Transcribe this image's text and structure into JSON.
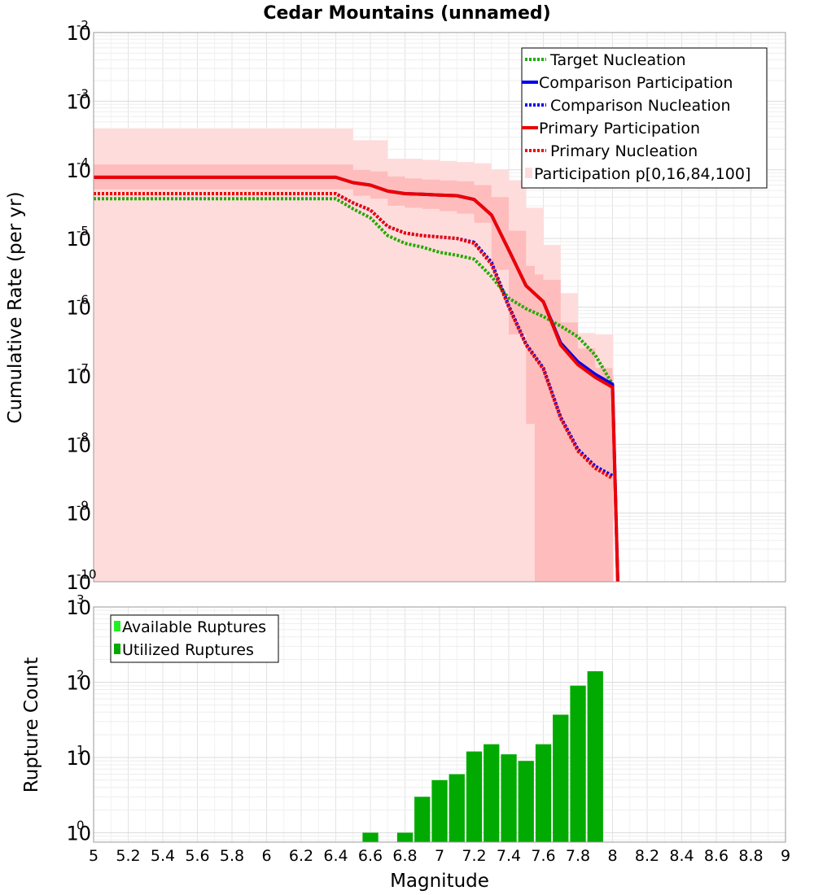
{
  "chart_data": [
    {
      "type": "line",
      "title": "Cedar Mountains (unnamed)",
      "xlabel": "",
      "ylabel": "Cumulative Rate (per yr)",
      "y_scale": "log",
      "xlim": [
        5,
        9
      ],
      "ylim": [
        1e-10,
        0.01
      ],
      "y_tick_exponents": [
        "-10",
        "-9",
        "-8",
        "-7",
        "-6",
        "-5",
        "-4",
        "-3",
        "-2"
      ],
      "grid": true,
      "legend_position": "top-right",
      "series": [
        {
          "name": "Target Nucleation",
          "style": "dotted",
          "color": "#22aa00",
          "x": [
            5.0,
            6.4,
            6.5,
            6.6,
            6.7,
            6.8,
            6.9,
            7.0,
            7.1,
            7.2,
            7.3,
            7.4,
            7.5,
            7.6,
            7.7,
            7.8,
            7.9,
            8.0
          ],
          "y": [
            3.8e-05,
            3.8e-05,
            2.7e-05,
            2e-05,
            1.1e-05,
            8.5e-06,
            7.5e-06,
            6.3e-06,
            5.7e-06,
            5e-06,
            2.8e-06,
            1.35e-06,
            9.5e-07,
            7.3e-07,
            5.3e-07,
            3.7e-07,
            2e-07,
            7.5e-08
          ]
        },
        {
          "name": "Comparison Participation",
          "style": "solid",
          "color": "#0000ee",
          "x": [
            5.0,
            6.4,
            6.5,
            6.6,
            6.7,
            6.8,
            6.9,
            7.0,
            7.1,
            7.2,
            7.3,
            7.4,
            7.5,
            7.6,
            7.7,
            7.8,
            7.9,
            8.0,
            8.03
          ],
          "y": [
            7.8e-05,
            7.8e-05,
            6.5e-05,
            6e-05,
            4.9e-05,
            4.5e-05,
            4.4e-05,
            4.3e-05,
            4.2e-05,
            3.7e-05,
            2.2e-05,
            6.8e-06,
            2.05e-06,
            1.2e-06,
            3e-07,
            1.6e-07,
            1.05e-07,
            7.5e-08,
            1e-10
          ]
        },
        {
          "name": "Comparison Nucleation",
          "style": "dotted",
          "color": "#0000ee",
          "x": [
            5.0,
            6.4,
            6.5,
            6.6,
            6.7,
            6.8,
            6.9,
            7.0,
            7.1,
            7.2,
            7.3,
            7.4,
            7.5,
            7.6,
            7.7,
            7.8,
            7.9,
            8.0
          ],
          "y": [
            4.5e-05,
            4.5e-05,
            3.3e-05,
            2.6e-05,
            1.5e-05,
            1.2e-05,
            1.1e-05,
            1.05e-05,
            1e-05,
            8.8e-06,
            4.5e-06,
            1.05e-06,
            2.9e-07,
            1.3e-07,
            2.5e-08,
            8.5e-09,
            4.8e-09,
            3.5e-09
          ]
        },
        {
          "name": "Primary Participation",
          "style": "solid",
          "color": "#ee0000",
          "x": [
            5.0,
            6.4,
            6.5,
            6.6,
            6.7,
            6.8,
            6.9,
            7.0,
            7.1,
            7.2,
            7.3,
            7.4,
            7.5,
            7.6,
            7.7,
            7.8,
            7.9,
            8.0,
            8.03
          ],
          "y": [
            7.8e-05,
            7.8e-05,
            6.5e-05,
            6e-05,
            4.9e-05,
            4.5e-05,
            4.4e-05,
            4.3e-05,
            4.2e-05,
            3.7e-05,
            2.2e-05,
            6.8e-06,
            2.05e-06,
            1.2e-06,
            2.8e-07,
            1.45e-07,
            9.5e-08,
            6.8e-08,
            1e-10
          ]
        },
        {
          "name": "Primary Nucleation",
          "style": "dotted",
          "color": "#ee0000",
          "x": [
            5.0,
            6.4,
            6.5,
            6.6,
            6.7,
            6.8,
            6.9,
            7.0,
            7.1,
            7.2,
            7.3,
            7.4,
            7.5,
            7.6,
            7.7,
            7.8,
            7.9,
            8.0
          ],
          "y": [
            4.5e-05,
            4.5e-05,
            3.3e-05,
            2.6e-05,
            1.5e-05,
            1.2e-05,
            1.1e-05,
            1.05e-05,
            1e-05,
            8.5e-06,
            4.2e-06,
            1e-06,
            2.8e-07,
            1.25e-07,
            2.4e-08,
            8e-09,
            4.5e-09,
            3.2e-09
          ]
        }
      ],
      "bands": [
        {
          "name": "Participation p[0,16,84,100]",
          "label": "p0-p100",
          "color": "#ffdcdc",
          "x": [
            5.0,
            6.4,
            6.5,
            6.6,
            6.7,
            6.8,
            6.9,
            7.0,
            7.1,
            7.2,
            7.3,
            7.4,
            7.5,
            7.6,
            7.7,
            7.8,
            7.9,
            8.0
          ],
          "upper": [
            0.0004,
            0.0004,
            0.00027,
            0.00027,
            0.000145,
            0.000145,
            0.00014,
            0.000135,
            0.00013,
            0.000125,
            0.0001,
            7e-05,
            2.8e-05,
            8e-06,
            1.6e-06,
            4.2e-07,
            4e-07,
            4e-07
          ],
          "lower": [
            1e-10,
            1e-10,
            1e-10,
            1e-10,
            1e-10,
            1e-10,
            1e-10,
            1e-10,
            1e-10,
            1e-10,
            1e-10,
            1e-10,
            1e-10,
            1e-10,
            1e-10,
            1e-10,
            1e-10,
            1e-10
          ]
        },
        {
          "name": "p16-p84",
          "label": "p16-p84",
          "color": "#ffbcbc",
          "x": [
            5.0,
            6.4,
            6.5,
            6.6,
            6.7,
            6.8,
            6.9,
            7.0,
            7.1,
            7.2,
            7.3,
            7.4,
            7.5,
            7.55,
            7.6,
            7.7,
            7.8,
            7.9,
            8.0
          ],
          "upper": [
            0.00012,
            0.00012,
            0.0001,
            9.5e-05,
            8e-05,
            7.5e-05,
            7.2e-05,
            7e-05,
            6.8e-05,
            6e-05,
            4e-05,
            1.3e-05,
            4e-06,
            3e-06,
            2.5e-06,
            6e-07,
            2.5e-07,
            1.3e-07,
            1e-07
          ],
          "lower": [
            5.2e-05,
            5.2e-05,
            4.2e-05,
            3.8e-05,
            3e-05,
            2.8e-05,
            2.7e-05,
            2.5e-05,
            2.3e-05,
            1.7e-05,
            3.5e-06,
            4e-07,
            2e-08,
            1e-10,
            1e-10,
            1e-10,
            1e-10,
            1e-10,
            1e-10
          ]
        }
      ]
    },
    {
      "type": "bar",
      "xlabel": "Magnitude",
      "ylabel": "Rupture Count",
      "y_scale": "log",
      "xlim": [
        5,
        9
      ],
      "ylim": [
        0.75,
        1000
      ],
      "y_tick_exponents": [
        "0",
        "1",
        "2",
        "3"
      ],
      "x_ticks": [
        "5",
        "5.2",
        "5.4",
        "5.6",
        "5.8",
        "6",
        "6.2",
        "6.4",
        "6.6",
        "6.8",
        "7",
        "7.2",
        "7.4",
        "7.6",
        "7.8",
        "8",
        "8.2",
        "8.4",
        "8.6",
        "8.8",
        "9"
      ],
      "grid": true,
      "legend_position": "top-left",
      "bar_width": 0.1,
      "series": [
        {
          "name": "Available Ruptures",
          "color": "#22ee22",
          "x": [],
          "values": []
        },
        {
          "name": "Utilized Ruptures",
          "color": "#00aa00",
          "x": [
            6.6,
            6.8,
            6.9,
            7.0,
            7.1,
            7.2,
            7.3,
            7.4,
            7.5,
            7.6,
            7.7,
            7.8,
            7.9
          ],
          "values": [
            1,
            1,
            3,
            5,
            6,
            12,
            15,
            11,
            9,
            15,
            37,
            90,
            140
          ]
        }
      ]
    }
  ]
}
